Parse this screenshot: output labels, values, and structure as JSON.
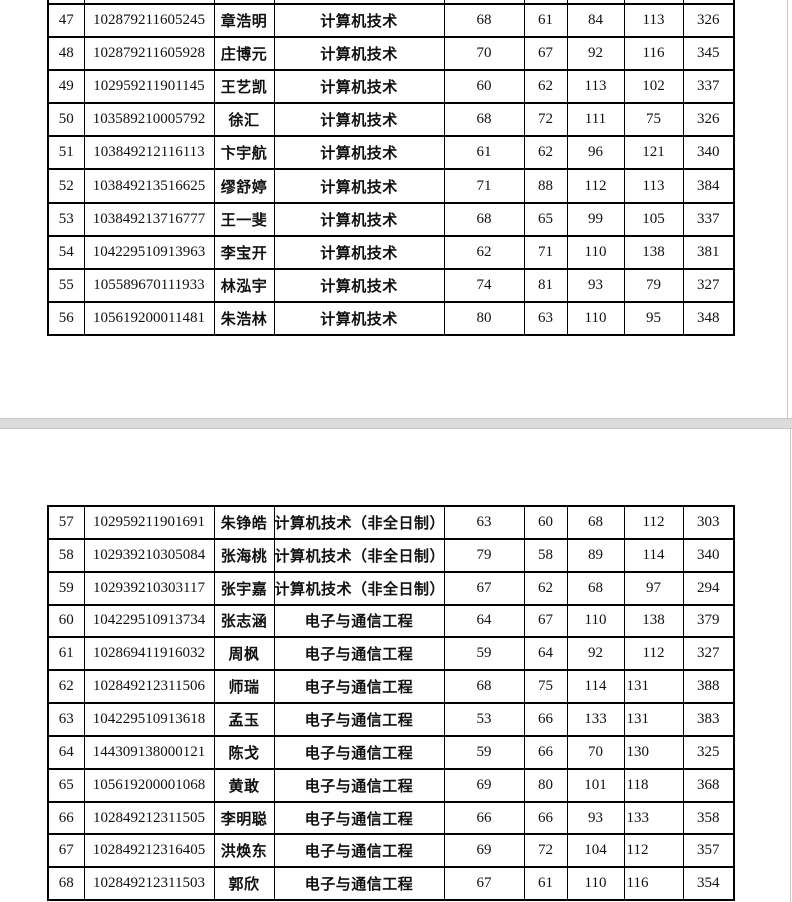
{
  "colors": {
    "page_background": "#ffffff",
    "page_separator": "#dcdcdc",
    "table_border": "#000000",
    "page_edge_line": "#cccccc",
    "text": "#111111"
  },
  "document": {
    "pages": [
      {
        "table": {
          "columns": [
            "no",
            "id",
            "name",
            "major",
            "s1",
            "s2",
            "s3",
            "s4",
            "total"
          ],
          "rows": [
            {
              "no": "47",
              "id": "102879211605245",
              "name": "章浩明",
              "major": "计算机技术",
              "s1": "68",
              "s2": "61",
              "s3": "84",
              "s4": "113",
              "total": "326"
            },
            {
              "no": "48",
              "id": "102879211605928",
              "name": "庄博元",
              "major": "计算机技术",
              "s1": "70",
              "s2": "67",
              "s3": "92",
              "s4": "116",
              "total": "345"
            },
            {
              "no": "49",
              "id": "102959211901145",
              "name": "王艺凯",
              "major": "计算机技术",
              "s1": "60",
              "s2": "62",
              "s3": "113",
              "s4": "102",
              "total": "337"
            },
            {
              "no": "50",
              "id": "103589210005792",
              "name": "徐汇",
              "major": "计算机技术",
              "s1": "68",
              "s2": "72",
              "s3": "111",
              "s4": "75",
              "total": "326"
            },
            {
              "no": "51",
              "id": "103849212116113",
              "name": "卞宇航",
              "major": "计算机技术",
              "s1": "61",
              "s2": "62",
              "s3": "96",
              "s4": "121",
              "total": "340"
            },
            {
              "no": "52",
              "id": "103849213516625",
              "name": "缪舒婷",
              "major": "计算机技术",
              "s1": "71",
              "s2": "88",
              "s3": "112",
              "s4": "113",
              "total": "384"
            },
            {
              "no": "53",
              "id": "103849213716777",
              "name": "王一斐",
              "major": "计算机技术",
              "s1": "68",
              "s2": "65",
              "s3": "99",
              "s4": "105",
              "total": "337"
            },
            {
              "no": "54",
              "id": "104229510913963",
              "name": "李宝开",
              "major": "计算机技术",
              "s1": "62",
              "s2": "71",
              "s3": "110",
              "s4": "138",
              "total": "381"
            },
            {
              "no": "55",
              "id": "105589670111933",
              "name": "林泓宇",
              "major": "计算机技术",
              "s1": "74",
              "s2": "81",
              "s3": "93",
              "s4": "79",
              "total": "327"
            },
            {
              "no": "56",
              "id": "105619200011481",
              "name": "朱浩林",
              "major": "计算机技术",
              "s1": "80",
              "s2": "63",
              "s3": "110",
              "s4": "95",
              "total": "348"
            }
          ]
        }
      },
      {
        "table": {
          "columns": [
            "no",
            "id",
            "name",
            "major",
            "s1",
            "s2",
            "s3",
            "s4",
            "total"
          ],
          "rows": [
            {
              "no": "57",
              "id": "102959211901691",
              "name": "朱铮皓",
              "major": "计算机技术（非全日制）",
              "s1": "63",
              "s2": "60",
              "s3": "68",
              "s4": "112",
              "total": "303"
            },
            {
              "no": "58",
              "id": "102939210305084",
              "name": "张海桃",
              "major": "计算机技术（非全日制）",
              "s1": "79",
              "s2": "58",
              "s3": "89",
              "s4": "114",
              "total": "340"
            },
            {
              "no": "59",
              "id": "102939210303117",
              "name": "张宇嘉",
              "major": "计算机技术（非全日制）",
              "s1": "67",
              "s2": "62",
              "s3": "68",
              "s4": "97",
              "total": "294"
            },
            {
              "no": "60",
              "id": "104229510913734",
              "name": "张志涵",
              "major": "电子与通信工程",
              "s1": "64",
              "s2": "67",
              "s3": "110",
              "s4": "138",
              "total": "379"
            },
            {
              "no": "61",
              "id": "102869411916032",
              "name": "周枫",
              "major": "电子与通信工程",
              "s1": "59",
              "s2": "64",
              "s3": "92",
              "s4": "112",
              "total": "327"
            },
            {
              "no": "62",
              "id": "102849212311506",
              "name": "师瑞",
              "major": "电子与通信工程",
              "s1": "68",
              "s2": "75",
              "s3": "114",
              "s4": "131",
              "s4_align": "left",
              "total": "388"
            },
            {
              "no": "63",
              "id": "104229510913618",
              "name": "孟玉",
              "major": "电子与通信工程",
              "s1": "53",
              "s2": "66",
              "s3": "133",
              "s4": "131",
              "s4_align": "left",
              "total": "383"
            },
            {
              "no": "64",
              "id": "144309138000121",
              "name": "陈戈",
              "major": "电子与通信工程",
              "s1": "59",
              "s2": "66",
              "s3": "70",
              "s4": "130",
              "s4_align": "left",
              "total": "325"
            },
            {
              "no": "65",
              "id": "105619200001068",
              "name": "黄敢",
              "major": "电子与通信工程",
              "s1": "69",
              "s2": "80",
              "s3": "101",
              "s4": "118",
              "s4_align": "left",
              "total": "368"
            },
            {
              "no": "66",
              "id": "102849212311505",
              "name": "李明聪",
              "major": "电子与通信工程",
              "s1": "66",
              "s2": "66",
              "s3": "93",
              "s4": "133",
              "s4_align": "left",
              "total": "358"
            },
            {
              "no": "67",
              "id": "102849212316405",
              "name": "洪焕东",
              "major": "电子与通信工程",
              "s1": "69",
              "s2": "72",
              "s3": "104",
              "s4": "112",
              "s4_align": "left",
              "total": "357"
            },
            {
              "no": "68",
              "id": "102849212311503",
              "name": "郭欣",
              "major": "电子与通信工程",
              "s1": "67",
              "s2": "61",
              "s3": "110",
              "s4": "116",
              "s4_align": "left",
              "total": "354"
            }
          ]
        }
      }
    ]
  }
}
